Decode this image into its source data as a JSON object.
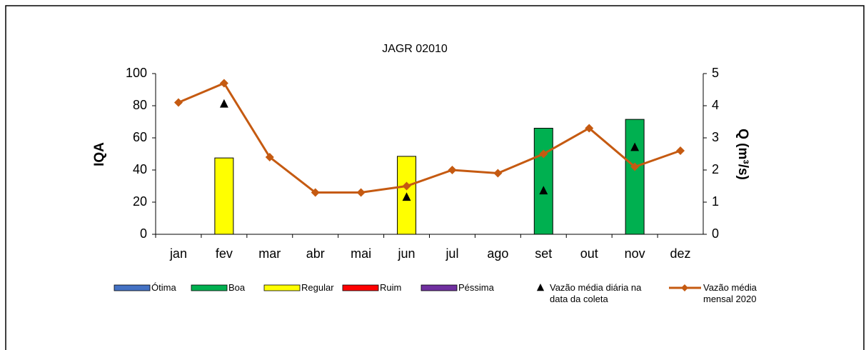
{
  "chart_data": {
    "type": "combo",
    "title": "JAGR 02010",
    "y_label": "IQA",
    "y2_label": "Q (m³/s)",
    "categories": [
      "jan",
      "fev",
      "mar",
      "abr",
      "mai",
      "jun",
      "jul",
      "ago",
      "set",
      "out",
      "nov",
      "dez"
    ],
    "ylim": [
      0,
      100
    ],
    "yticks": [
      0,
      20,
      40,
      60,
      80,
      100
    ],
    "y2lim": [
      0,
      5
    ],
    "y2ticks": [
      0,
      1,
      2,
      3,
      4,
      5
    ],
    "series": [
      {
        "name": "Ótima",
        "type": "bar",
        "color": "#4472c4",
        "values": [
          null,
          null,
          null,
          null,
          null,
          null,
          null,
          null,
          null,
          null,
          null,
          null
        ]
      },
      {
        "name": "Boa",
        "type": "bar",
        "color": "#00b050",
        "values": [
          null,
          null,
          null,
          null,
          null,
          null,
          null,
          null,
          66,
          null,
          71.5,
          null
        ]
      },
      {
        "name": "Regular",
        "type": "bar",
        "color": "#ffff00",
        "values": [
          null,
          47.5,
          null,
          null,
          null,
          48.5,
          null,
          null,
          null,
          null,
          null,
          null
        ]
      },
      {
        "name": "Ruim",
        "type": "bar",
        "color": "#ff0000",
        "values": [
          null,
          null,
          null,
          null,
          null,
          null,
          null,
          null,
          null,
          null,
          null,
          null
        ]
      },
      {
        "name": "Péssima",
        "type": "bar",
        "color": "#7030a0",
        "values": [
          null,
          null,
          null,
          null,
          null,
          null,
          null,
          null,
          null,
          null,
          null,
          null
        ]
      },
      {
        "name": "Vazão média diária na data da coleta",
        "type": "scatter",
        "axis": "y2",
        "color": "#000000",
        "values": [
          null,
          4.05,
          null,
          null,
          null,
          1.15,
          null,
          null,
          1.35,
          null,
          2.7,
          null
        ]
      },
      {
        "name": "Vazão média mensal 2020",
        "type": "line",
        "axis": "y2",
        "color": "#c55a11",
        "values": [
          4.1,
          4.7,
          2.4,
          1.3,
          1.3,
          1.5,
          2.0,
          1.9,
          2.5,
          3.3,
          2.1,
          2.6
        ]
      }
    ]
  }
}
